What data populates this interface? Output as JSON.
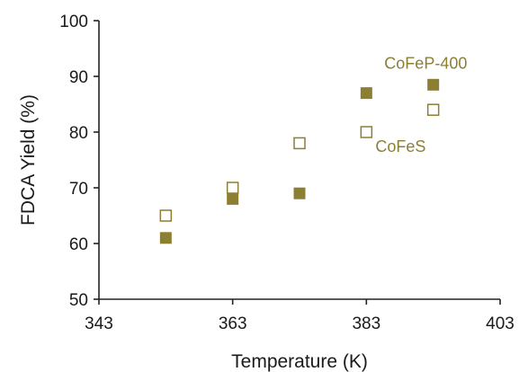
{
  "chart_data": {
    "type": "scatter",
    "title": "",
    "xlabel": "Temperature (K)",
    "ylabel": "FDCA Yield (%)",
    "xlim": [
      343,
      403
    ],
    "ylim": [
      50,
      100
    ],
    "xticks": [
      343,
      363,
      383,
      403
    ],
    "yticks": [
      50,
      60,
      70,
      80,
      90,
      100
    ],
    "grid": false,
    "marker_color": "#8c7f33",
    "series": [
      {
        "name": "CoFeP-400",
        "marker": "filled-square",
        "x": [
          353,
          363,
          373,
          383,
          393
        ],
        "y": [
          61,
          68,
          69,
          87,
          88.5
        ]
      },
      {
        "name": "CoFeS",
        "marker": "open-square",
        "x": [
          353,
          363,
          373,
          383,
          393
        ],
        "y": [
          65,
          70,
          78,
          80,
          84
        ]
      }
    ]
  }
}
